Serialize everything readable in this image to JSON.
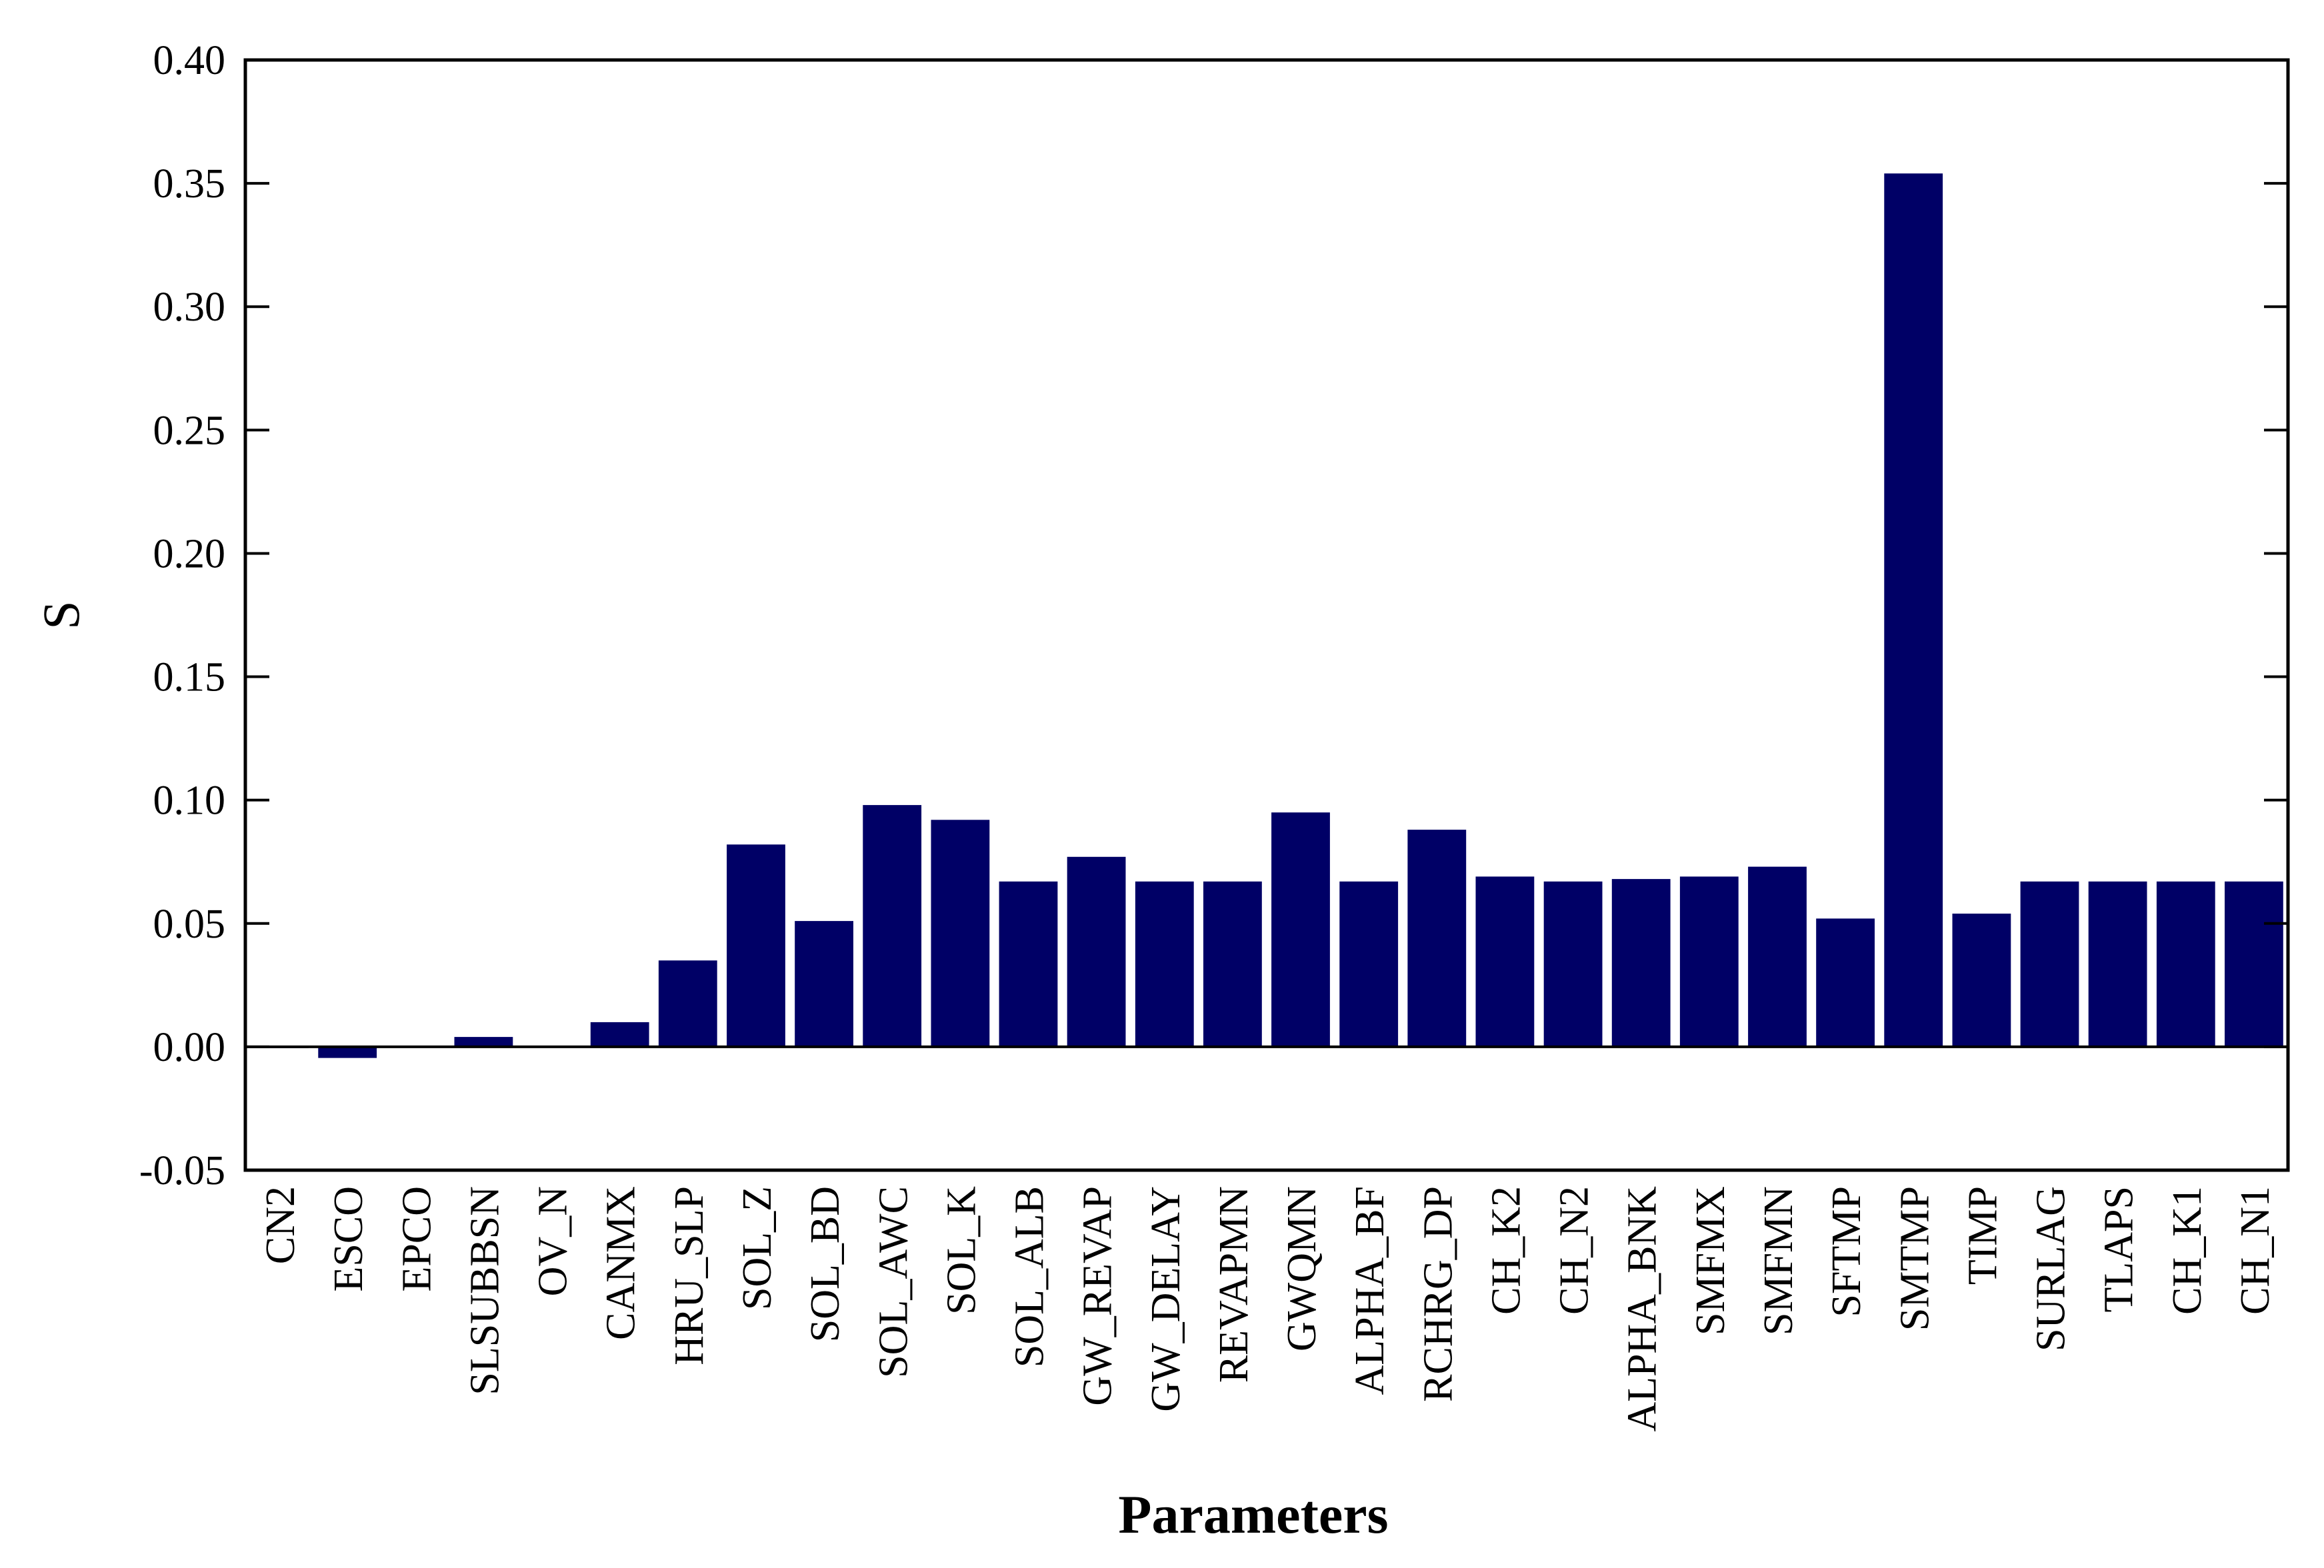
{
  "chart_data": {
    "type": "bar",
    "xlabel": "Parameters",
    "ylabel": "S",
    "ylim": [
      -0.05,
      0.4
    ],
    "yticks": [
      "-0.05",
      "0.00",
      "0.05",
      "0.10",
      "0.15",
      "0.20",
      "0.25",
      "0.30",
      "0.35",
      "0.40"
    ],
    "grid": false,
    "legend": "none",
    "bar_color": "#000066",
    "categories": [
      "CN2",
      "ESCO",
      "EPCO",
      "SLSUBBSN",
      "OV_N",
      "CANMX",
      "HRU_SLP",
      "SOL_Z",
      "SOL_BD",
      "SOL_AWC",
      "SOL_K",
      "SOL_ALB",
      "GW_REVAP",
      "GW_DELAY",
      "REVAPMN",
      "GWQMN",
      "ALPHA_BF",
      "RCHRG_DP",
      "CH_K2",
      "CH_N2",
      "ALPHA_BNK",
      "SMFMX",
      "SMFMN",
      "SFTMP",
      "SMTMP",
      "TIMP",
      "SURLAG",
      "TLAPS",
      "CH_K1",
      "CH_N1"
    ],
    "values": [
      -0.0005,
      -0.0045,
      0.0,
      0.004,
      0.0,
      0.01,
      0.035,
      0.082,
      0.051,
      0.098,
      0.092,
      0.067,
      0.077,
      0.067,
      0.067,
      0.095,
      0.067,
      0.088,
      0.069,
      0.067,
      0.068,
      0.069,
      0.073,
      0.052,
      0.354,
      0.054,
      0.067,
      0.067,
      0.067,
      0.067
    ]
  }
}
